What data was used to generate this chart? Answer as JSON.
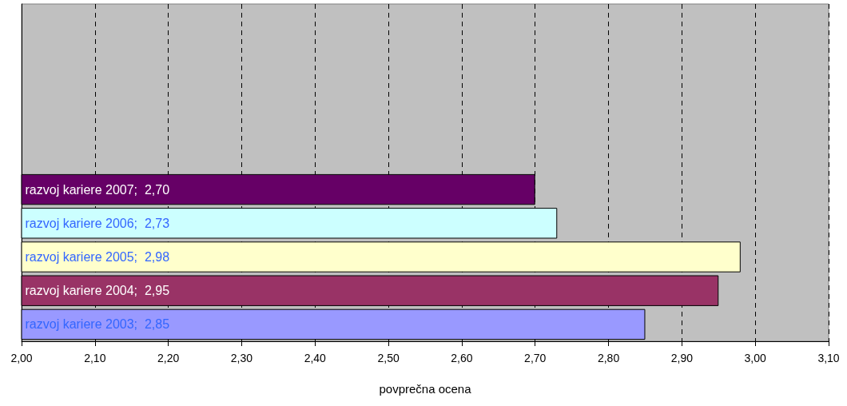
{
  "chart_data": {
    "type": "bar",
    "orientation": "horizontal",
    "xlabel": "povprečna ocena",
    "categories": [
      null,
      null,
      null,
      null,
      null,
      null,
      null,
      null,
      null,
      null
    ],
    "values": [
      null,
      null,
      null,
      null,
      null,
      2.7,
      2.73,
      2.98,
      2.95,
      2.85
    ],
    "colors": [
      "#660066",
      "#660066",
      "#660066",
      "#660066",
      "#660066",
      "#660066",
      "#ccffff",
      "#ffffcc",
      "#993366",
      "#9999ff"
    ],
    "value_labels": [
      null,
      null,
      null,
      null,
      null,
      "razvoj kariere 2007;  2,70",
      "razvoj kariere 2006;  2,73",
      "razvoj kariere 2005;  2,98",
      "razvoj kariere 2004;  2,95",
      "razvoj kariere 2003;  2,85"
    ],
    "xlim": [
      2.0,
      3.1
    ],
    "xticks": [
      {
        "value": 2.0,
        "label": "2,00"
      },
      {
        "value": 2.1,
        "label": "2,10"
      },
      {
        "value": 2.2,
        "label": "2,20"
      },
      {
        "value": 2.3,
        "label": "2,30"
      },
      {
        "value": 2.4,
        "label": "2,40"
      },
      {
        "value": 2.5,
        "label": "2,50"
      },
      {
        "value": 2.6,
        "label": "2,60"
      },
      {
        "value": 2.7,
        "label": "2,70"
      },
      {
        "value": 2.8,
        "label": "2,80"
      },
      {
        "value": 2.9,
        "label": "2,90"
      },
      {
        "value": 3.0,
        "label": "3,00"
      },
      {
        "value": 3.1,
        "label": "3,10"
      }
    ],
    "grid": "x",
    "tick_labels": "x"
  }
}
